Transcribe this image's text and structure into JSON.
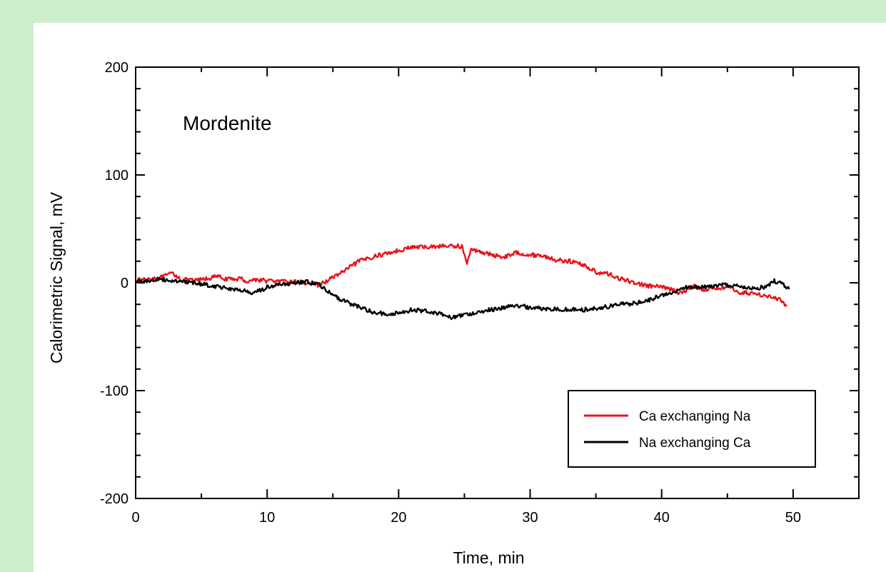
{
  "chart_data": {
    "type": "line",
    "title": "",
    "annotation": "Mordenite",
    "xlabel": "Time, min",
    "ylabel": "Calorimetric Signal, mV",
    "xlim": [
      0,
      55
    ],
    "ylim": [
      -200,
      200
    ],
    "xticks": [
      0,
      10,
      20,
      30,
      40,
      50
    ],
    "yticks": [
      -200,
      -100,
      0,
      100,
      200
    ],
    "grid": false,
    "legend_position": "bottom-right",
    "series": [
      {
        "name": "Ca exchanging Na",
        "color": "#e8141c",
        "x": [
          0,
          1,
          2,
          2.8,
          3.5,
          4.5,
          5.5,
          6.2,
          7,
          8,
          8.5,
          9,
          10,
          11,
          12,
          13,
          14,
          15,
          16,
          17,
          18,
          19,
          20,
          21,
          22,
          23,
          24,
          24.8,
          25.2,
          25.5,
          26,
          27,
          28,
          29,
          29.5,
          30,
          31,
          32,
          33,
          34,
          35,
          36,
          37,
          38,
          39,
          40,
          41,
          41.5,
          42,
          42.5,
          43,
          44,
          45,
          46,
          47,
          48,
          49,
          49.5
        ],
        "y": [
          2,
          4,
          5,
          9,
          3,
          2,
          4,
          6,
          3,
          4,
          1,
          3,
          2,
          1,
          1,
          0,
          -2,
          5,
          12,
          20,
          24,
          27,
          30,
          33,
          33,
          34,
          34,
          34,
          18,
          30,
          30,
          26,
          24,
          28,
          27,
          26,
          25,
          21,
          20,
          17,
          10,
          8,
          3,
          0,
          -3,
          -4,
          -7,
          -10,
          -5,
          -3,
          -6,
          -5,
          -4,
          -9,
          -10,
          -12,
          -16,
          -22
        ]
      },
      {
        "name": "Na exchanging Ca",
        "color": "#000000",
        "x": [
          0,
          1,
          2,
          3,
          4,
          5,
          6,
          7,
          8,
          9,
          10,
          11,
          12,
          13,
          14,
          15,
          16,
          17,
          18,
          19,
          20,
          21,
          22,
          23,
          24,
          25,
          26,
          27,
          28,
          29,
          30,
          31,
          32,
          33,
          34,
          35,
          36,
          37,
          38,
          39,
          40,
          41,
          42,
          43,
          44,
          45,
          46,
          47,
          48,
          48.5,
          49,
          49.7
        ],
        "y": [
          1,
          2,
          3,
          2,
          0,
          -1,
          -3,
          -5,
          -7,
          -10,
          -4,
          -2,
          0,
          1,
          -2,
          -12,
          -18,
          -22,
          -27,
          -29,
          -28,
          -25,
          -26,
          -28,
          -32,
          -30,
          -27,
          -25,
          -23,
          -21,
          -23,
          -24,
          -24,
          -25,
          -25,
          -24,
          -22,
          -20,
          -19,
          -16,
          -12,
          -8,
          -4,
          -4,
          -3,
          -2,
          -4,
          -5,
          -4,
          2,
          0,
          -6
        ]
      }
    ]
  }
}
